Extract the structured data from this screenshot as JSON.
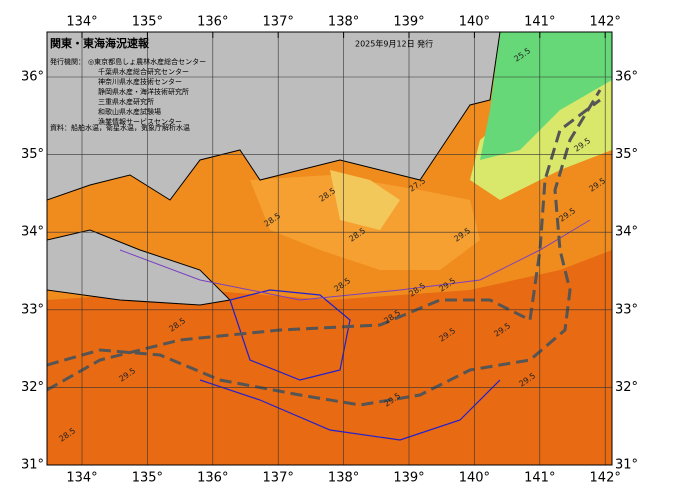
{
  "header": {
    "title": "関東・東海海況速報",
    "date": "2025年9月12日 発行"
  },
  "issuers": {
    "label": "発行機関：",
    "names": [
      "◎東京都島しょ農林水産総合センター",
      "千葉県水産総合研究センター",
      "神奈川県水産技術センター",
      "静岡県水産・海洋技術研究所",
      "三重県水産研究所",
      "和歌山県水産試験場",
      "漁業情報サービスセンター"
    ]
  },
  "source": "資料：船舶水温，衛星水温，気象庁解析水温",
  "longitudes": [
    {
      "value": 134,
      "label": "134°"
    },
    {
      "value": 135,
      "label": "135°"
    },
    {
      "value": 136,
      "label": "136°"
    },
    {
      "value": 137,
      "label": "137°"
    },
    {
      "value": 138,
      "label": "138°"
    },
    {
      "value": 139,
      "label": "139°"
    },
    {
      "value": 140,
      "label": "140°"
    },
    {
      "value": 141,
      "label": "141°"
    },
    {
      "value": 142,
      "label": "142°"
    }
  ],
  "latitudes": [
    {
      "value": 36,
      "label": "36°"
    },
    {
      "value": 35,
      "label": "35°"
    },
    {
      "value": 34,
      "label": "34°"
    },
    {
      "value": 33,
      "label": "33°"
    },
    {
      "value": 32,
      "label": "32°"
    },
    {
      "value": 31,
      "label": "31°"
    }
  ],
  "contour_labels": [
    "25.5",
    "27.5",
    "28.5",
    "28.5",
    "29.5",
    "28.5",
    "28.5",
    "29.5",
    "28.5",
    "29.5",
    "29.5",
    "28.5",
    "29.5",
    "29.5",
    "29.5",
    "29.5",
    "29.5",
    "28.5",
    "29.5",
    "28.5"
  ]
}
